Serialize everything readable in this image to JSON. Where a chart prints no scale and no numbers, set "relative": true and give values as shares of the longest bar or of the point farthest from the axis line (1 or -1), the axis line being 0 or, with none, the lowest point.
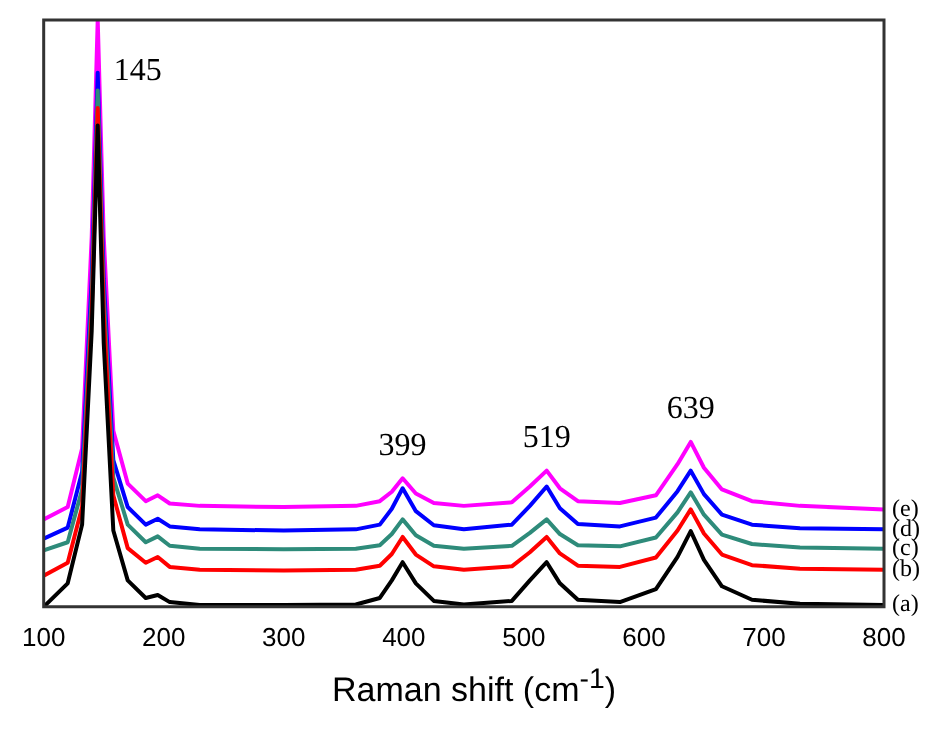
{
  "chart_data": {
    "type": "line",
    "xlabel": "Raman shift (cm$^{-1}$)",
    "relative": true,
    "xlim": [
      100,
      800
    ],
    "xticks": [
      100,
      200,
      300,
      400,
      500,
      600,
      700,
      800
    ],
    "grid": false,
    "legend": false,
    "marker": "none",
    "line_style": "solid",
    "x": [
      100,
      120,
      132,
      140,
      145,
      150,
      158,
      170,
      185,
      195,
      205,
      230,
      300,
      360,
      380,
      390,
      399,
      410,
      425,
      450,
      490,
      505,
      519,
      530,
      545,
      580,
      610,
      628,
      639,
      650,
      665,
      690,
      730,
      800
    ],
    "series": [
      {
        "name": "(a)",
        "color": "#000000",
        "values": [
          0.0,
          0.04,
          0.14,
          0.47,
          0.82,
          0.45,
          0.13,
          0.045,
          0.015,
          0.02,
          0.008,
          0.003,
          0.003,
          0.004,
          0.015,
          0.045,
          0.076,
          0.04,
          0.01,
          0.004,
          0.01,
          0.045,
          0.076,
          0.04,
          0.012,
          0.008,
          0.03,
          0.085,
          0.129,
          0.08,
          0.035,
          0.012,
          0.005,
          0.003
        ]
      },
      {
        "name": "(b)",
        "color": "#ff0000",
        "values": [
          0.053,
          0.075,
          0.17,
          0.5,
          0.85,
          0.5,
          0.19,
          0.1,
          0.075,
          0.085,
          0.068,
          0.063,
          0.062,
          0.063,
          0.07,
          0.09,
          0.119,
          0.089,
          0.069,
          0.063,
          0.069,
          0.093,
          0.119,
          0.091,
          0.07,
          0.068,
          0.084,
          0.13,
          0.166,
          0.125,
          0.089,
          0.071,
          0.065,
          0.063
        ]
      },
      {
        "name": "(c)",
        "color": "#2e8b7a",
        "values": [
          0.096,
          0.11,
          0.2,
          0.53,
          0.88,
          0.53,
          0.22,
          0.14,
          0.11,
          0.12,
          0.104,
          0.099,
          0.098,
          0.099,
          0.105,
          0.124,
          0.149,
          0.122,
          0.104,
          0.099,
          0.104,
          0.126,
          0.149,
          0.124,
          0.105,
          0.103,
          0.118,
          0.161,
          0.195,
          0.157,
          0.123,
          0.107,
          0.101,
          0.099
        ]
      },
      {
        "name": "(d)",
        "color": "#0000ff",
        "values": [
          0.116,
          0.135,
          0.23,
          0.56,
          0.91,
          0.56,
          0.25,
          0.17,
          0.14,
          0.15,
          0.137,
          0.132,
          0.13,
          0.132,
          0.14,
          0.167,
          0.202,
          0.163,
          0.139,
          0.132,
          0.14,
          0.172,
          0.205,
          0.168,
          0.141,
          0.137,
          0.152,
          0.197,
          0.232,
          0.192,
          0.157,
          0.14,
          0.134,
          0.132
        ]
      },
      {
        "name": "(e)",
        "color": "#ff00ff",
        "values": [
          0.149,
          0.17,
          0.27,
          0.63,
          1.0,
          0.63,
          0.3,
          0.21,
          0.18,
          0.19,
          0.176,
          0.172,
          0.17,
          0.172,
          0.18,
          0.196,
          0.219,
          0.193,
          0.177,
          0.172,
          0.178,
          0.205,
          0.232,
          0.202,
          0.18,
          0.177,
          0.19,
          0.243,
          0.281,
          0.237,
          0.2,
          0.18,
          0.172,
          0.166
        ]
      }
    ],
    "annotations": [
      {
        "text": "145",
        "x": 145,
        "y": 1.0
      },
      {
        "text": "399",
        "x": 399,
        "y": 0.219
      },
      {
        "text": "519",
        "x": 519,
        "y": 0.232
      },
      {
        "text": "639",
        "x": 639,
        "y": 0.281
      }
    ]
  }
}
